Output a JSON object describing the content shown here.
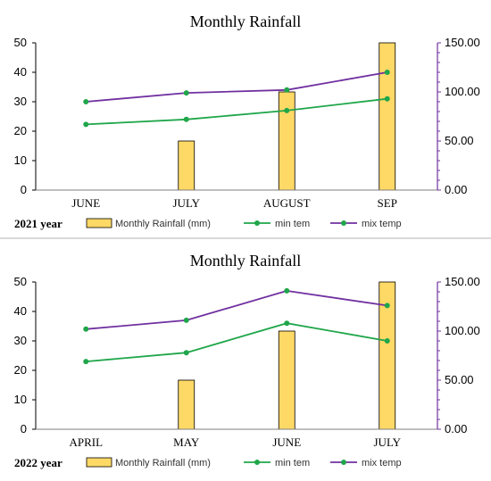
{
  "chart_data": [
    {
      "type": "bar",
      "title": "Monthly Rainfall",
      "year_label": "2021 year",
      "categories": [
        "JUNE",
        "JULY",
        "AUGUST",
        "SEP"
      ],
      "y_left": {
        "min": 0,
        "max": 50,
        "ticks": [
          "0",
          "10",
          "20",
          "30",
          "40",
          "50"
        ]
      },
      "y_right": {
        "min": 0,
        "max": 150,
        "ticks": [
          "0.00",
          "50.00",
          "100.00",
          "150.00"
        ]
      },
      "series": [
        {
          "name": "Monthly Rainfall (mm)",
          "type": "bar",
          "axis": "right",
          "color": "#FFD966",
          "values": [
            0,
            50,
            100,
            150
          ]
        },
        {
          "name": "min tem",
          "type": "line",
          "axis": "left",
          "color": "#1FA64A",
          "values": [
            22.3,
            24,
            27,
            31
          ]
        },
        {
          "name": "mix temp",
          "type": "line",
          "axis": "left",
          "color": "#7030A0",
          "values": [
            30,
            33,
            34,
            40
          ]
        }
      ],
      "xlabel": "",
      "ylabel": "",
      "grid": false,
      "legend": "bottom"
    },
    {
      "type": "bar",
      "title": "Monthly Rainfall",
      "year_label": "2022 year",
      "categories": [
        "APRIL",
        "MAY",
        "JUNE",
        "JULY"
      ],
      "y_left": {
        "min": 0,
        "max": 50,
        "ticks": [
          "0",
          "10",
          "20",
          "30",
          "40",
          "50"
        ]
      },
      "y_right": {
        "min": 0,
        "max": 150,
        "ticks": [
          "0.00",
          "50.00",
          "100.00",
          "150.00"
        ]
      },
      "series": [
        {
          "name": "Monthly Rainfall (mm)",
          "type": "bar",
          "axis": "right",
          "color": "#FFD966",
          "values": [
            0,
            50,
            100,
            150
          ]
        },
        {
          "name": "min tem",
          "type": "line",
          "axis": "left",
          "color": "#1FA64A",
          "values": [
            23,
            26,
            36,
            30
          ]
        },
        {
          "name": "mix temp",
          "type": "line",
          "axis": "left",
          "color": "#7030A0",
          "values": [
            34,
            37,
            47,
            42
          ]
        }
      ],
      "xlabel": "",
      "ylabel": "",
      "grid": false,
      "legend": "bottom"
    }
  ]
}
